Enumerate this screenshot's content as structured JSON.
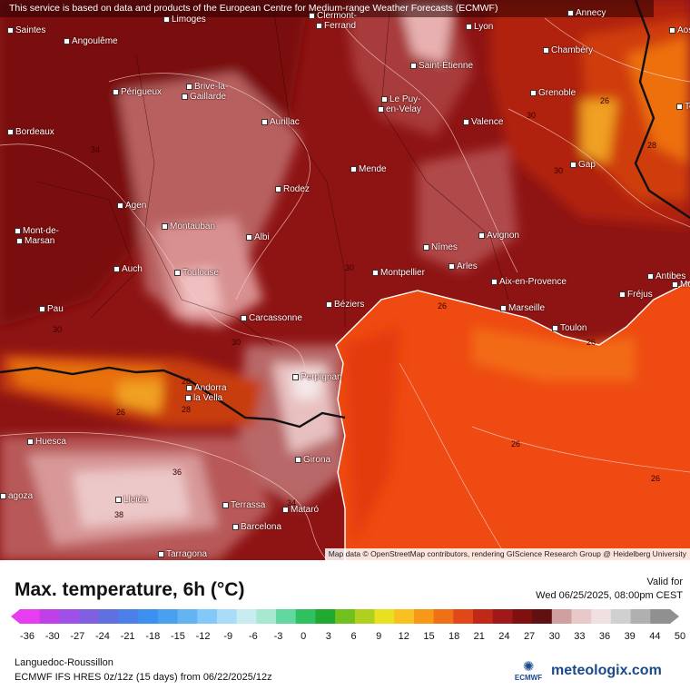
{
  "disclaimer": "This service is based on data and products of the European Centre for Medium-range Weather Forecasts (ECMWF)",
  "attribution": "Map data © OpenStreetMap contributors, rendering GIScience Research Group @ Heidelberg University",
  "cities": {
    "saintes": "Saintes",
    "angouleme": "Angoulême",
    "limoges": "Limoges",
    "clermont": "Clermont-",
    "ferrand": "Ferrand",
    "lyon": "Lyon",
    "annecy": "Annecy",
    "aosta": "Aos",
    "perigueux": "Périgueux",
    "brive": "Brive-la-",
    "gaillarde": "Gaillarde",
    "saint_etienne": "Saint-Étienne",
    "chambery": "Chambéry",
    "bordeaux": "Bordeaux",
    "aurillac": "Aurillac",
    "le_puy": "Le Puy-",
    "en_velay": "en-Velay",
    "valence": "Valence",
    "grenoble": "Grenoble",
    "to": "To",
    "mende": "Mende",
    "gap": "Gap",
    "rodez": "Rodez",
    "agen": "Agen",
    "montauban": "Montauban",
    "albi": "Albi",
    "mont_de": "Mont-de-",
    "marsan": "Marsan",
    "nimes": "Nîmes",
    "avignon": "Avignon",
    "auch": "Auch",
    "toulouse": "Toulouse",
    "montpellier": "Montpellier",
    "arles": "Arles",
    "antibes": "Antibes",
    "mo": "Mo",
    "aix": "Aix-en-Provence",
    "frejus": "Fréjus",
    "pau": "Pau",
    "beziers": "Béziers",
    "carcassonne": "Carcassonne",
    "marseille": "Marseille",
    "toulon": "Toulon",
    "perpignan": "Perpignan",
    "andorra": "Andorra",
    "la_vella": "la Vella",
    "huesca": "Huesca",
    "girona": "Girona",
    "zaragoza": "agoza",
    "lleida": "Lleida",
    "terrassa": "Terrassa",
    "mataro": "Mataró",
    "barcelona": "Barcelona",
    "tarragona": "Tarragona"
  },
  "isolines": {
    "a": "34",
    "b": "30",
    "c": "30",
    "d": "26",
    "e": "30",
    "f": "26",
    "g": "28",
    "h": "26",
    "i": "36",
    "j": "38",
    "k": "28",
    "l": "26",
    "m": "26",
    "n": "30",
    "o": "34",
    "p": "30",
    "q": "26",
    "r": "28"
  },
  "legend": {
    "title": "Max. temperature, 6h (°C)",
    "valid_label": "Valid for",
    "valid_date": "Wed 06/25/2025, 08:00pm CEST",
    "region": "Languedoc-Roussillon",
    "model": "ECMWF IFS HRES 0z/12z (15 days) from 06/22/2025/12z",
    "ecmwf": "ECMWF",
    "brand": "meteologix.com",
    "ticks": [
      "-36",
      "-30",
      "-27",
      "-24",
      "-21",
      "-18",
      "-15",
      "-12",
      "-9",
      "-6",
      "-3",
      "0",
      "3",
      "6",
      "9",
      "12",
      "15",
      "18",
      "21",
      "24",
      "27",
      "30",
      "33",
      "36",
      "39",
      "44",
      "50"
    ],
    "colors": [
      "#e83cf0",
      "#c040e8",
      "#a050e8",
      "#8060e0",
      "#6070e0",
      "#4c80e8",
      "#3c90f0",
      "#4aa0f0",
      "#64b4f4",
      "#84c8f8",
      "#a8dcf8",
      "#c8ecf0",
      "#a8e8d0",
      "#60d8a0",
      "#30c060",
      "#20a830",
      "#70c020",
      "#b0d020",
      "#e8e020",
      "#f8c020",
      "#f89818",
      "#f07018",
      "#e04818",
      "#c02818",
      "#a01818",
      "#801010",
      "#601010",
      "#d0a0a0",
      "#e8c8c8",
      "#f0e0e0",
      "#d0d0d0",
      "#b0b0b0",
      "#909090"
    ]
  }
}
